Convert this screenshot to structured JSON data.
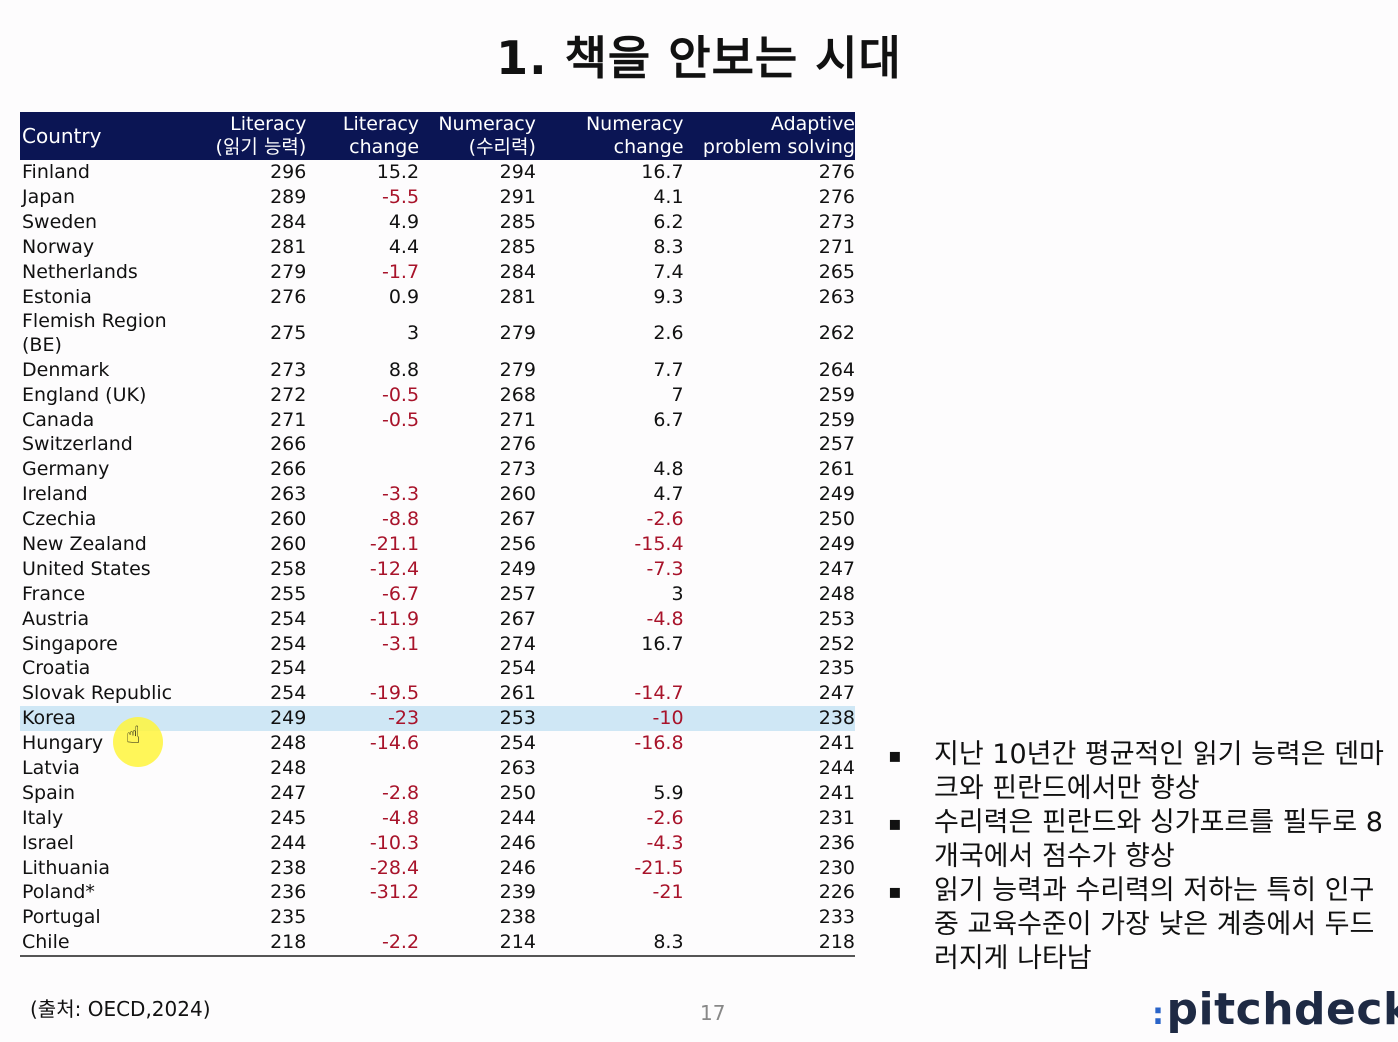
{
  "slide": {
    "title": "1. 책을 안보는 시대",
    "source": "(출처: OECD,2024)",
    "page_number": "17",
    "logo": "pitchdeck",
    "logo_mark": ":"
  },
  "table": {
    "headers": {
      "country": "Country",
      "literacy_1": "Literacy",
      "literacy_2": "(읽기 능력)",
      "literacy_change_1": "Literacy",
      "literacy_change_2": "change",
      "numeracy_1": "Numeracy",
      "numeracy_2": "(수리력)",
      "numeracy_change_1": "Numeracy",
      "numeracy_change_2": "change",
      "adaptive_1": "Adaptive",
      "adaptive_2": "problem solving"
    },
    "highlight_row": "Korea",
    "negative_color": "#a8132a",
    "highlight_color": "#cfe7f5",
    "header_color": "#0b1554",
    "rows": [
      [
        "Finland",
        "296",
        "15.2",
        "294",
        "16.7",
        "276"
      ],
      [
        "Japan",
        "289",
        "-5.5",
        "291",
        "4.1",
        "276"
      ],
      [
        "Sweden",
        "284",
        "4.9",
        "285",
        "6.2",
        "273"
      ],
      [
        "Norway",
        "281",
        "4.4",
        "285",
        "8.3",
        "271"
      ],
      [
        "Netherlands",
        "279",
        "-1.7",
        "284",
        "7.4",
        "265"
      ],
      [
        "Estonia",
        "276",
        "0.9",
        "281",
        "9.3",
        "263"
      ],
      [
        "Flemish Region (BE)",
        "275",
        "3",
        "279",
        "2.6",
        "262"
      ],
      [
        "Denmark",
        "273",
        "8.8",
        "279",
        "7.7",
        "264"
      ],
      [
        "England (UK)",
        "272",
        "-0.5",
        "268",
        "7",
        "259"
      ],
      [
        "Canada",
        "271",
        "-0.5",
        "271",
        "6.7",
        "259"
      ],
      [
        "Switzerland",
        "266",
        "",
        "276",
        "",
        "257"
      ],
      [
        "Germany",
        "266",
        "",
        "273",
        "4.8",
        "261"
      ],
      [
        "Ireland",
        "263",
        "-3.3",
        "260",
        "4.7",
        "249"
      ],
      [
        "Czechia",
        "260",
        "-8.8",
        "267",
        "-2.6",
        "250"
      ],
      [
        "New Zealand",
        "260",
        "-21.1",
        "256",
        "-15.4",
        "249"
      ],
      [
        "United States",
        "258",
        "-12.4",
        "249",
        "-7.3",
        "247"
      ],
      [
        "France",
        "255",
        "-6.7",
        "257",
        "3",
        "248"
      ],
      [
        "Austria",
        "254",
        "-11.9",
        "267",
        "-4.8",
        "253"
      ],
      [
        "Singapore",
        "254",
        "-3.1",
        "274",
        "16.7",
        "252"
      ],
      [
        "Croatia",
        "254",
        "",
        "254",
        "",
        "235"
      ],
      [
        "Slovak Republic",
        "254",
        "-19.5",
        "261",
        "-14.7",
        "247"
      ],
      [
        "Korea",
        "249",
        "-23",
        "253",
        "-10",
        "238"
      ],
      [
        "Hungary",
        "248",
        "-14.6",
        "254",
        "-16.8",
        "241"
      ],
      [
        "Latvia",
        "248",
        "",
        "263",
        "",
        "244"
      ],
      [
        "Spain",
        "247",
        "-2.8",
        "250",
        "5.9",
        "241"
      ],
      [
        "Italy",
        "245",
        "-4.8",
        "244",
        "-2.6",
        "231"
      ],
      [
        "Israel",
        "244",
        "-10.3",
        "246",
        "-4.3",
        "236"
      ],
      [
        "Lithuania",
        "238",
        "-28.4",
        "246",
        "-21.5",
        "230"
      ],
      [
        "Poland*",
        "236",
        "-31.2",
        "239",
        "-21",
        "226"
      ],
      [
        "Portugal",
        "235",
        "",
        "238",
        "",
        "233"
      ],
      [
        "Chile",
        "218",
        "-2.2",
        "214",
        "8.3",
        "218"
      ]
    ]
  },
  "bullets": {
    "marker": "▪",
    "items": [
      "지난 10년간 평균적인 읽기 능력은 덴마크와 핀란드에서만 향상",
      "수리력은 핀란드와 싱가포르를 필두로 8개국에서 점수가 향상",
      "읽기 능력과 수리력의 저하는 특히 인구 중 교육수준이 가장 낮은 계층에서 두드러지게 나타남"
    ]
  },
  "cursor": {
    "icon": "hand-pointer-icon",
    "glyph": "☝",
    "highlight_color": "#fff53c"
  }
}
